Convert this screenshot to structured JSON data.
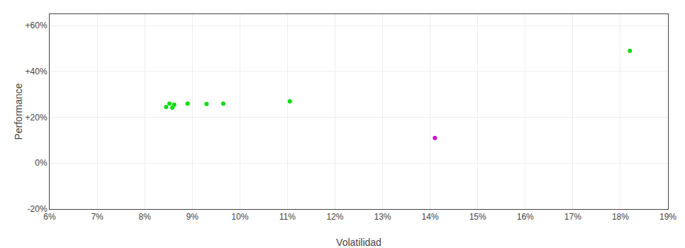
{
  "chart_data": {
    "type": "scatter",
    "xlabel": "Volatilidad",
    "ylabel": "Performance",
    "series": [
      {
        "color": "#00dd00",
        "marker": "circle",
        "x": [
          0.0845,
          0.0852,
          0.0858,
          0.0862,
          0.089,
          0.093,
          0.0965,
          0.1105,
          0.182
        ],
        "values": [
          0.245,
          0.26,
          0.242,
          0.255,
          0.26,
          0.258,
          0.26,
          0.27,
          0.49
        ]
      },
      {
        "color": "#cc00cc",
        "marker": "circle",
        "x": [
          0.141
        ],
        "values": [
          0.11
        ]
      }
    ],
    "xlim": [
      0.06,
      0.19
    ],
    "ylim": [
      -0.2,
      0.65
    ],
    "xticks": [
      {
        "value": 0.06,
        "label": "6%"
      },
      {
        "value": 0.07,
        "label": "7%"
      },
      {
        "value": 0.08,
        "label": "8%"
      },
      {
        "value": 0.09,
        "label": "9%"
      },
      {
        "value": 0.1,
        "label": "10%"
      },
      {
        "value": 0.11,
        "label": "11%"
      },
      {
        "value": 0.12,
        "label": "12%"
      },
      {
        "value": 0.13,
        "label": "13%"
      },
      {
        "value": 0.14,
        "label": "14%"
      },
      {
        "value": 0.15,
        "label": "15%"
      },
      {
        "value": 0.16,
        "label": "16%"
      },
      {
        "value": 0.17,
        "label": "17%"
      },
      {
        "value": 0.18,
        "label": "18%"
      },
      {
        "value": 0.19,
        "label": "19%"
      }
    ],
    "yticks": [
      {
        "value": -0.2,
        "label": "-20%"
      },
      {
        "value": 0.0,
        "label": "0%"
      },
      {
        "value": 0.2,
        "label": "+20%"
      },
      {
        "value": 0.4,
        "label": "+40%"
      },
      {
        "value": 0.6,
        "label": "+60%"
      }
    ],
    "grid": true
  }
}
